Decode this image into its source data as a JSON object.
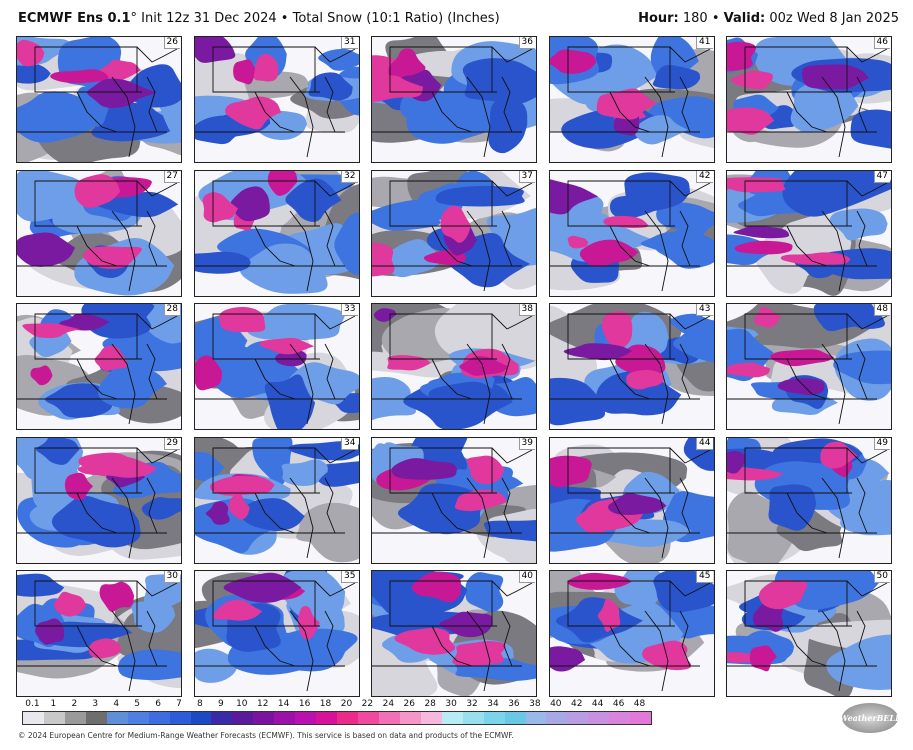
{
  "header": {
    "model": "ECMWF Ens 0.1",
    "degree": "°",
    "init": "Init 12z 31 Dec 2024",
    "separator": "•",
    "product": "Total Snow (10:1 Ratio) (Inches)",
    "hour_label": "Hour:",
    "hour_value": "180",
    "valid_label": "Valid:",
    "valid_value": "00z Wed 8 Jan 2025"
  },
  "panels": [
    {
      "member": "26",
      "style": 0
    },
    {
      "member": "31",
      "style": 1
    },
    {
      "member": "36",
      "style": 2
    },
    {
      "member": "41",
      "style": 3
    },
    {
      "member": "46",
      "style": 4
    },
    {
      "member": "27",
      "style": 5
    },
    {
      "member": "32",
      "style": 6
    },
    {
      "member": "37",
      "style": 7
    },
    {
      "member": "42",
      "style": 8
    },
    {
      "member": "47",
      "style": 9
    },
    {
      "member": "28",
      "style": 10
    },
    {
      "member": "33",
      "style": 11
    },
    {
      "member": "38",
      "style": 12
    },
    {
      "member": "43",
      "style": 13
    },
    {
      "member": "48",
      "style": 14
    },
    {
      "member": "29",
      "style": 15
    },
    {
      "member": "34",
      "style": 16
    },
    {
      "member": "39",
      "style": 17
    },
    {
      "member": "44",
      "style": 18
    },
    {
      "member": "49",
      "style": 19
    },
    {
      "member": "30",
      "style": 20
    },
    {
      "member": "35",
      "style": 21
    },
    {
      "member": "40",
      "style": 22
    },
    {
      "member": "45",
      "style": 23
    },
    {
      "member": "50",
      "style": 24
    }
  ],
  "colorbar": {
    "ticks": [
      "0.1",
      "1",
      "2",
      "3",
      "4",
      "5",
      "6",
      "7",
      "8",
      "9",
      "10",
      "12",
      "14",
      "16",
      "18",
      "20",
      "22",
      "24",
      "26",
      "28",
      "30",
      "32",
      "34",
      "36",
      "38",
      "40",
      "42",
      "44",
      "46",
      "48"
    ],
    "colors": [
      "#e8e8ee",
      "#c8c8c8",
      "#9a9a9a",
      "#6e6e6e",
      "#5f8fd8",
      "#4f7fe0",
      "#3d6ee0",
      "#2c5cd8",
      "#1e49c4",
      "#3a2aa8",
      "#5a1a9e",
      "#7a14a0",
      "#9a12a8",
      "#bb10b0",
      "#d8109a",
      "#ec2a8a",
      "#f04aa0",
      "#f270b6",
      "#f496c8",
      "#f6b8dc",
      "#b8ecf4",
      "#98e0ee",
      "#7ad4ea",
      "#68c8e6",
      "#9ab8e8",
      "#a8a8e6",
      "#b89ce4",
      "#c890e0",
      "#d884dc",
      "#e478d8"
    ]
  },
  "footer": "© 2024 European Centre for Medium-Range Weather Forecasts (ECMWF). This service is based on data and products of the ECMWF.",
  "logo_text": "WeatherBELL"
}
